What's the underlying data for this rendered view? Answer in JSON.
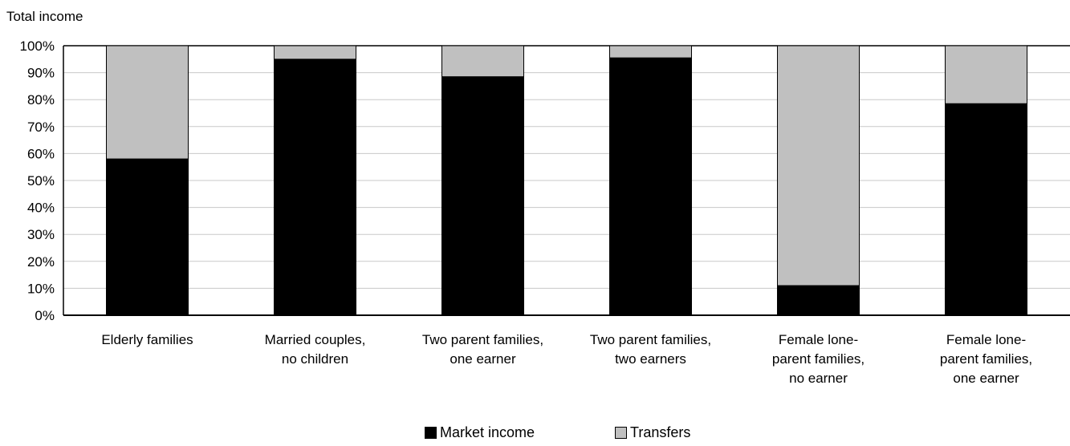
{
  "chart_data": {
    "type": "bar",
    "stacked": true,
    "ylabel": "Total income",
    "ylim": [
      0,
      100
    ],
    "yticks": [
      "0%",
      "10%",
      "20%",
      "30%",
      "40%",
      "50%",
      "60%",
      "70%",
      "80%",
      "90%",
      "100%"
    ],
    "grid": true,
    "legend_position": "bottom",
    "categories": [
      [
        "Elderly families"
      ],
      [
        "Married couples,",
        "no children"
      ],
      [
        "Two parent families,",
        "one earner"
      ],
      [
        "Two parent families,",
        "two earners"
      ],
      [
        "Female lone-",
        "parent families,",
        "no earner"
      ],
      [
        "Female lone-",
        "parent families,",
        "one earner"
      ]
    ],
    "series": [
      {
        "name": "Market income",
        "color": "#000000",
        "values": [
          58,
          95,
          88.5,
          95.5,
          11,
          78.5
        ]
      },
      {
        "name": "Transfers",
        "color": "#c0c0c0",
        "values": [
          42,
          5,
          11.5,
          4.5,
          89,
          21.5
        ]
      }
    ]
  }
}
